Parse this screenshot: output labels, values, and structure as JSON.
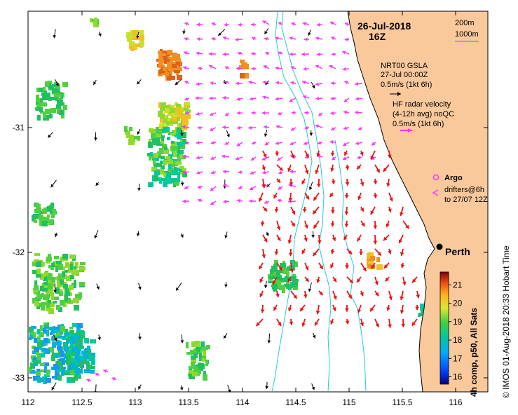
{
  "header": {
    "date": "26-Jul-2018",
    "time": "16Z"
  },
  "depth_legend": {
    "contour_1": "200m",
    "contour_2": "1000m",
    "color": "#22c8d8"
  },
  "gsla_legend": {
    "line1": "NRT00 GSLA",
    "line2": "27-Jul 00:00Z",
    "line3": "0.5m/s (1kt 6h)"
  },
  "hf_radar_legend": {
    "line1": "HF radar velocity",
    "line2": "(4-12h avg) noQC",
    "line3": "0.5m/s (1kt 6h)"
  },
  "argo_legend": {
    "label": "Argo"
  },
  "drifters_legend": {
    "line1": "drifters@6h",
    "line2": "to 27/07 12Z"
  },
  "city": {
    "name": "Perth"
  },
  "colorbar": {
    "label": "4h comp, p50, All Sats",
    "ticks": [
      "21",
      "20",
      "19",
      "18",
      "17",
      "16"
    ],
    "min": 15.6,
    "max": 21.7
  },
  "credit": "© IMOS 01-Aug-2018 20:33 Hobart Time",
  "axes": {
    "x_ticks": [
      "112",
      "112.5",
      "113",
      "113.5",
      "114",
      "114.5",
      "115",
      "115.5",
      "116"
    ],
    "y_ticks": [
      "-31",
      "-32",
      "-33"
    ],
    "lon_range": [
      112,
      116.3
    ],
    "lat_range": [
      -33.1,
      -30.1
    ]
  },
  "colors": {
    "land": "#f9c89b",
    "hf_radar_arrows": "#ff33ff",
    "drifter_arrows": "#ee1111",
    "gsla_arrows": "#000000",
    "coast": "#000000"
  }
}
